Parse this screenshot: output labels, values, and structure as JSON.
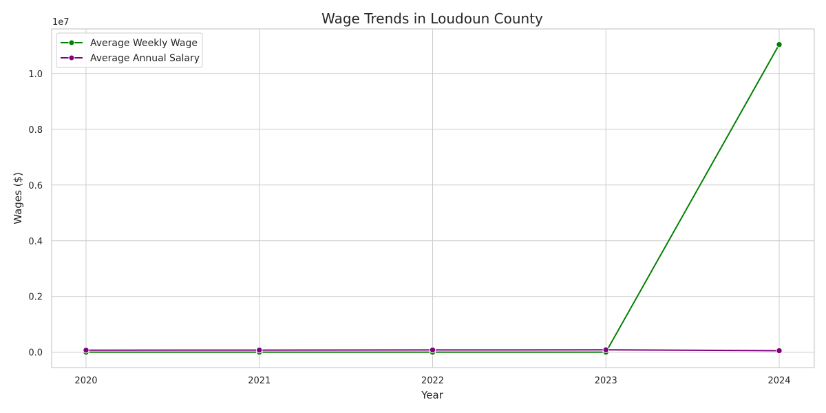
{
  "chart_data": {
    "type": "line",
    "title": "Wage Trends in Loudoun County",
    "xlabel": "Year",
    "ylabel": "Wages ($)",
    "y_offset_label": "1e7",
    "x": [
      2020,
      2021,
      2022,
      2023,
      2024
    ],
    "x_tick_labels": [
      "2020",
      "2021",
      "2022",
      "2023",
      "2024"
    ],
    "y_tick_values": [
      0,
      2000000,
      4000000,
      6000000,
      8000000,
      10000000
    ],
    "y_tick_labels": [
      "0.0",
      "0.2",
      "0.4",
      "0.6",
      "0.8",
      "1.0"
    ],
    "ylim": [
      -550000,
      11600000
    ],
    "grid": true,
    "legend_position": "top-left",
    "series": [
      {
        "name": "Average Weekly Wage",
        "color": "#008000",
        "values": [
          1700,
          1750,
          1800,
          1850,
          11040000
        ]
      },
      {
        "name": "Average Annual Salary",
        "color": "#800080",
        "values": [
          75000,
          78000,
          82000,
          86000,
          55000
        ]
      }
    ]
  }
}
